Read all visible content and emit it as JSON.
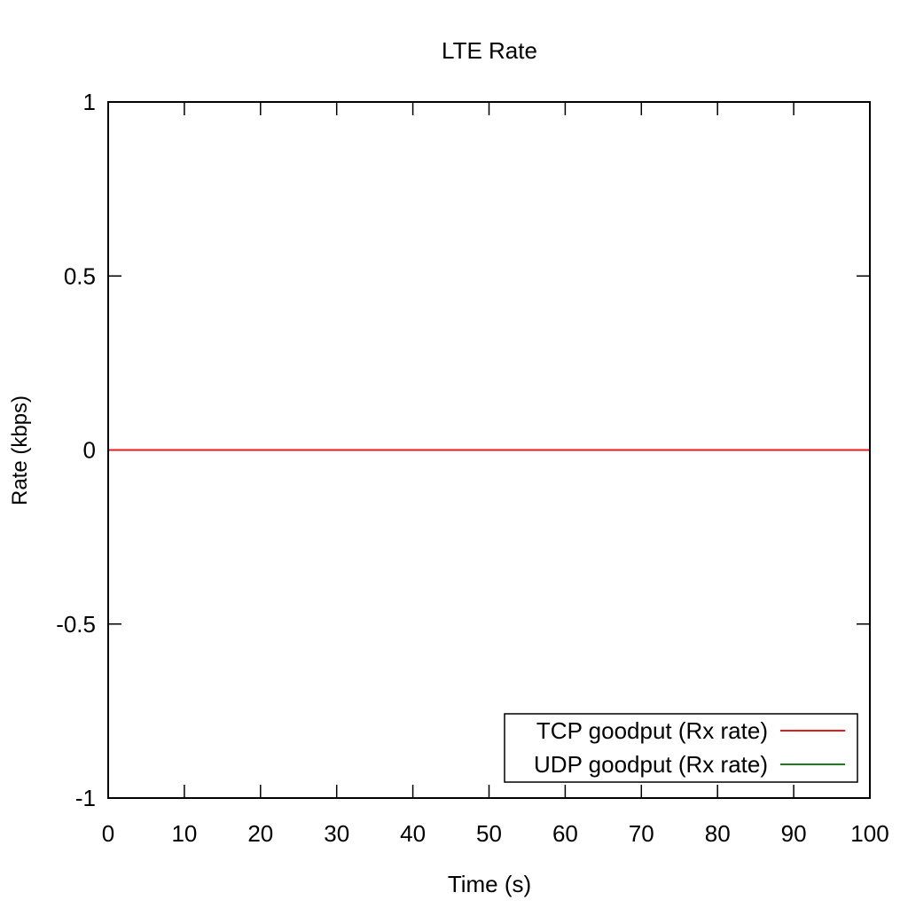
{
  "chart_data": {
    "type": "line",
    "title": "LTE Rate",
    "xlabel": "Time (s)",
    "ylabel": "Rate (kbps)",
    "xlim": [
      0,
      100
    ],
    "ylim": [
      -1,
      1
    ],
    "x_ticks": [
      0,
      10,
      20,
      30,
      40,
      50,
      60,
      70,
      80,
      90,
      100
    ],
    "y_ticks": [
      -1,
      -0.5,
      0,
      0.5,
      1
    ],
    "x_tick_labels": [
      "0",
      "10",
      "20",
      "30",
      "40",
      "50",
      "60",
      "70",
      "80",
      "90",
      "100"
    ],
    "y_tick_labels": [
      "-1",
      "-0.5",
      "0",
      "0.5",
      "1"
    ],
    "grid": false,
    "legend_position": "bottom-right",
    "series": [
      {
        "name": "TCP goodput (Rx rate)",
        "color": "#e41a1c",
        "x": [
          0,
          100
        ],
        "y": [
          0,
          0
        ]
      },
      {
        "name": "UDP goodput (Rx rate)",
        "color": "#1a7f1a",
        "x": [
          0,
          100
        ],
        "y": [
          0,
          0
        ]
      }
    ]
  }
}
